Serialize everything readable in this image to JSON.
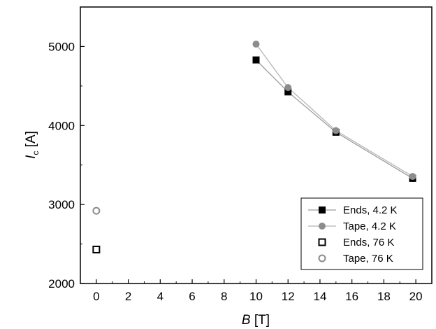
{
  "chart_data": {
    "type": "scatter",
    "title": "",
    "xlabel": {
      "symbol": "B",
      "unit": "[T]"
    },
    "ylabel": {
      "symbol": "I",
      "subscript": "c",
      "unit": "[A]"
    },
    "xlim": [
      -1,
      21
    ],
    "ylim": [
      2000,
      5500
    ],
    "xticks": [
      0,
      2,
      4,
      6,
      8,
      10,
      12,
      14,
      16,
      18,
      20
    ],
    "yticks": [
      2000,
      3000,
      4000,
      5000
    ],
    "grid": false,
    "legend_position": "bottom-right",
    "series": [
      {
        "name": "Ends, 4.2 K",
        "marker": "square",
        "filled": true,
        "line": true,
        "color": "#000000",
        "line_color": "#9a9a9a",
        "x": [
          10,
          12,
          15,
          19.8
        ],
        "y": [
          4830,
          4425,
          3915,
          3330
        ]
      },
      {
        "name": "Tape, 4.2 K",
        "marker": "circle",
        "filled": true,
        "line": true,
        "color": "#8c8c8c",
        "line_color": "#b5b5b5",
        "x": [
          10,
          12,
          15,
          19.8
        ],
        "y": [
          5030,
          4480,
          3935,
          3355
        ]
      },
      {
        "name": "Ends, 76 K",
        "marker": "square",
        "filled": false,
        "line": false,
        "color": "#000000",
        "x": [
          0
        ],
        "y": [
          2430
        ]
      },
      {
        "name": "Tape, 76 K",
        "marker": "circle",
        "filled": false,
        "line": false,
        "color": "#8c8c8c",
        "x": [
          0
        ],
        "y": [
          2920
        ]
      }
    ]
  }
}
